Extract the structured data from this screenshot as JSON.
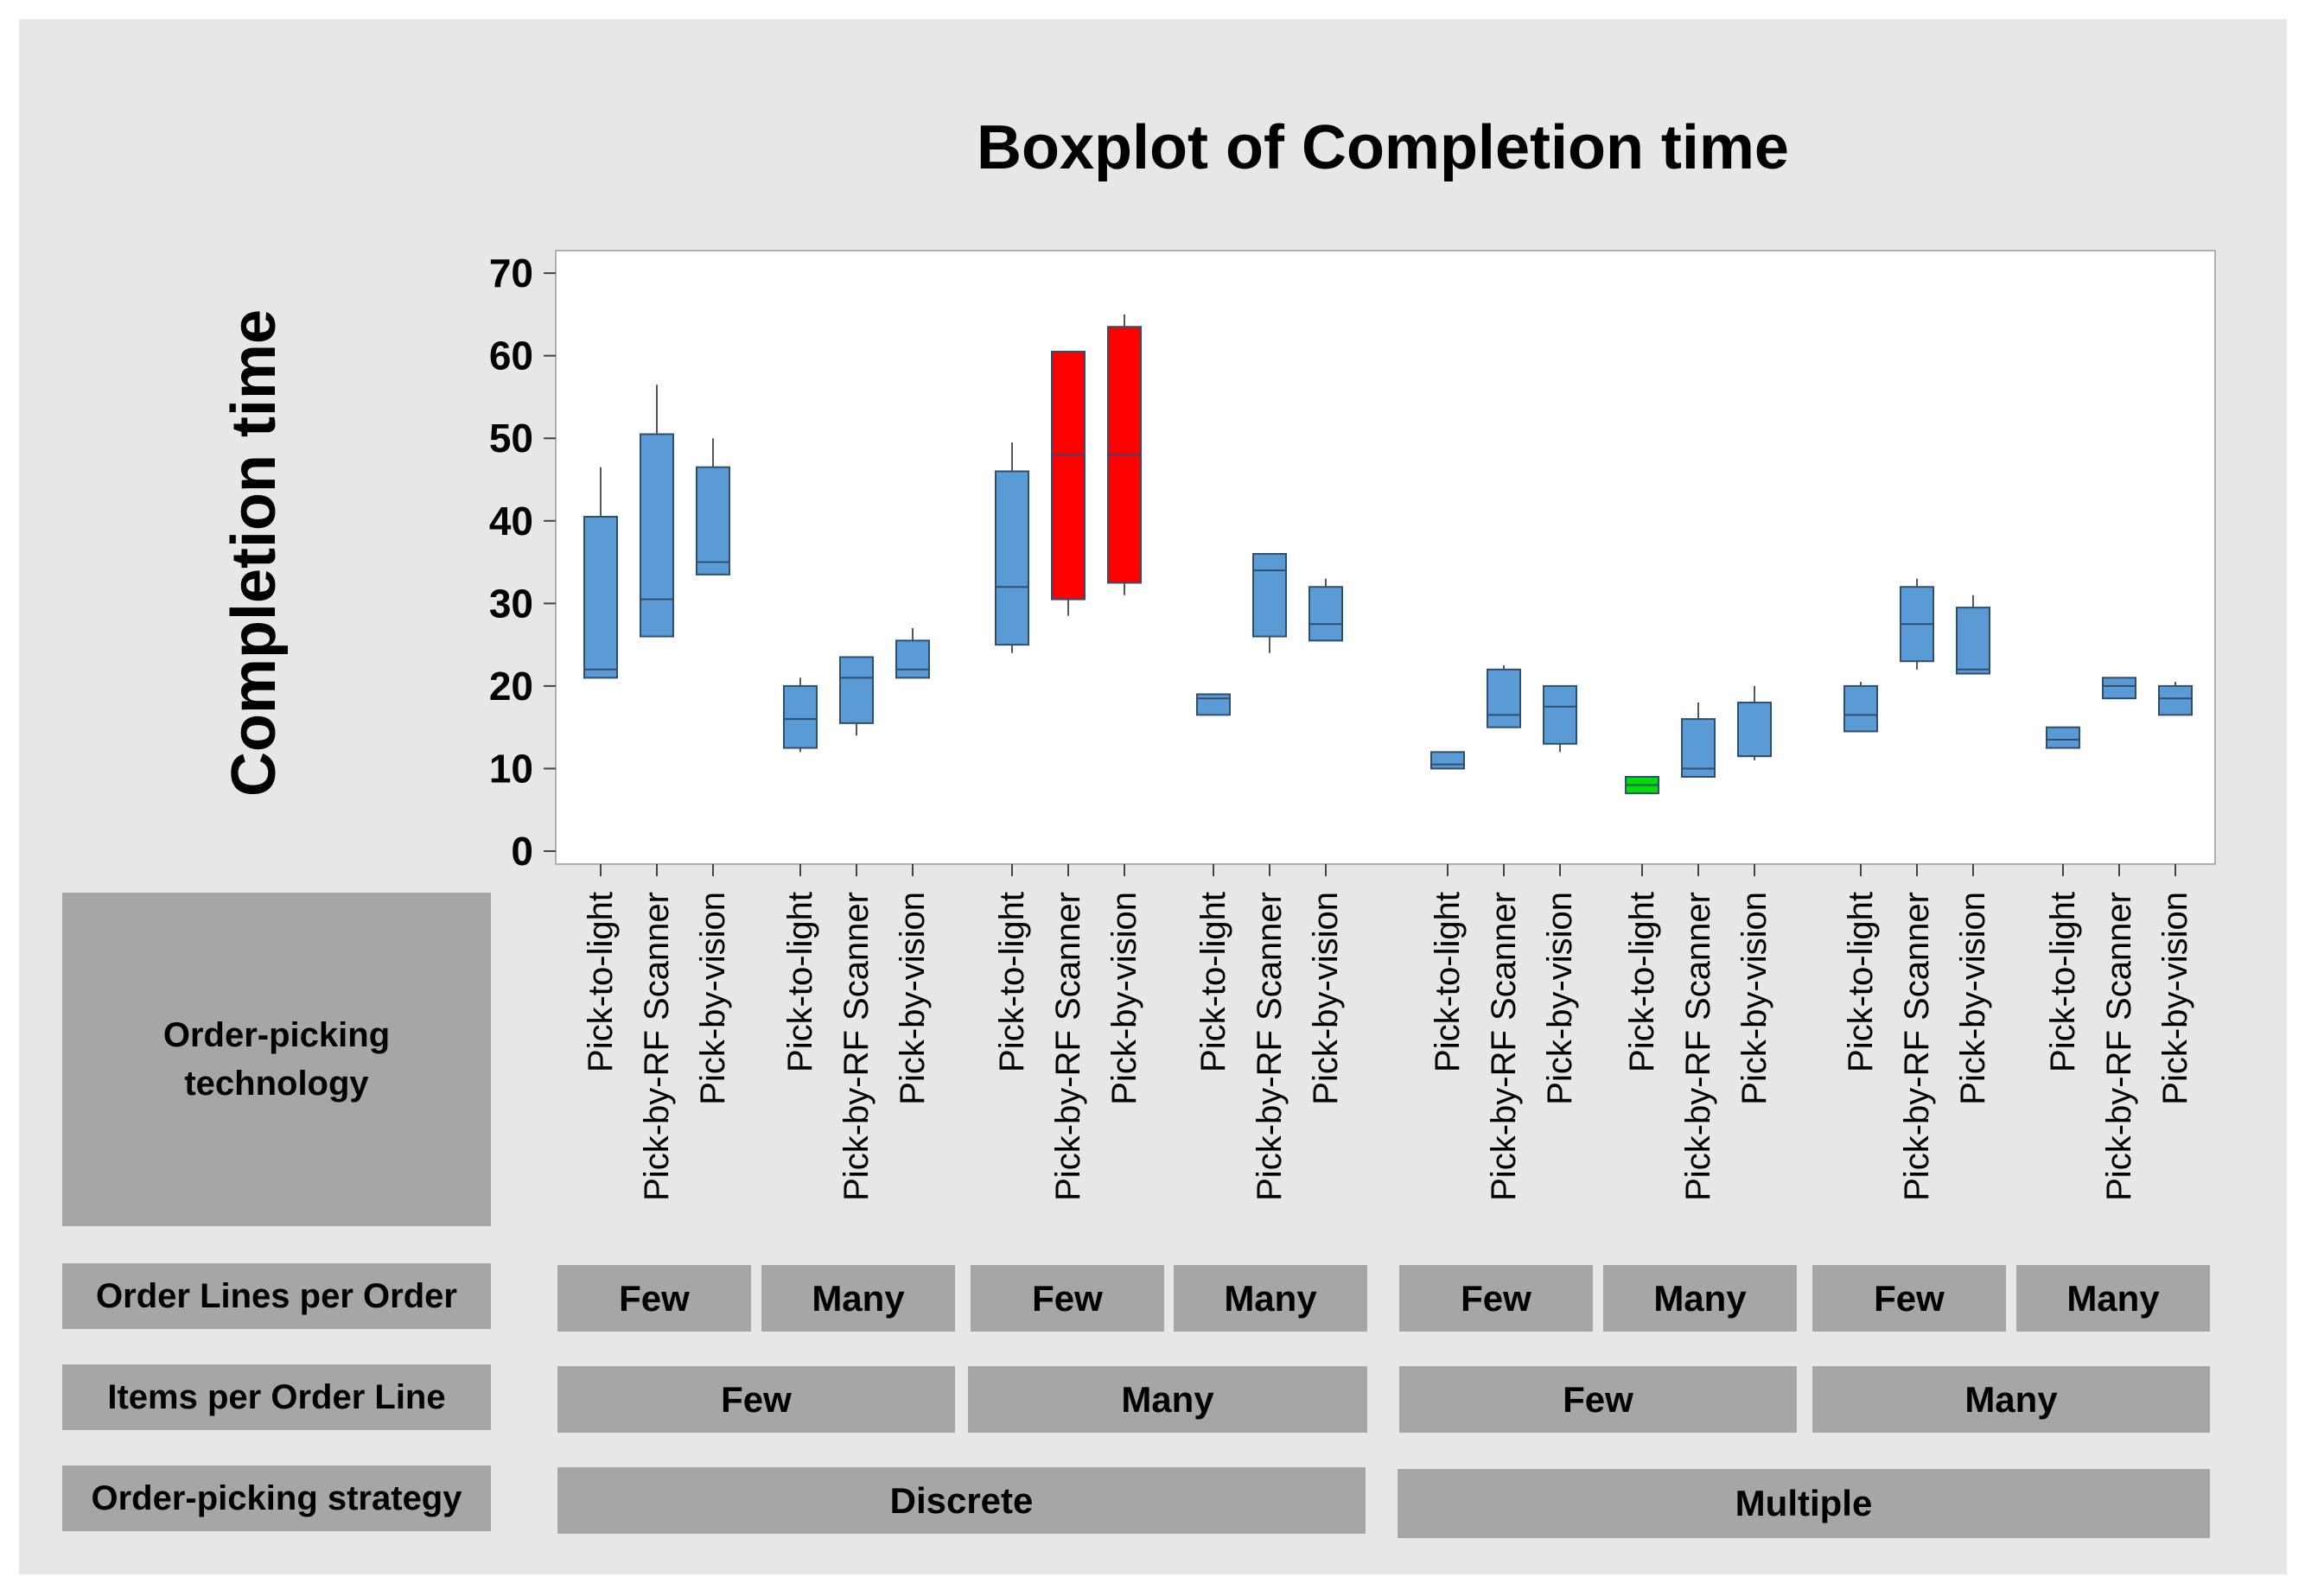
{
  "chart_data": {
    "type": "boxplot",
    "title": "Boxplot of Completion time",
    "ylabel": "Completion time",
    "ylim": [
      0,
      72
    ],
    "yticks": [
      0,
      10,
      20,
      30,
      40,
      50,
      60,
      70
    ],
    "colors": {
      "default": "#5b9bd5",
      "worst": "#ff0000",
      "best": "#00dd00",
      "stroke": "#2f4f6f"
    },
    "boxes": [
      {
        "technology": "Pick-to-light",
        "min": 21,
        "q1": 21,
        "median": 22,
        "q3": 40.5,
        "max": 46.5,
        "highlight": "default"
      },
      {
        "technology": "Pick-by-RF Scanner",
        "min": 26,
        "q1": 26,
        "median": 30.5,
        "q3": 50.5,
        "max": 56.5,
        "highlight": "default"
      },
      {
        "technology": "Pick-by-vision",
        "min": 33.5,
        "q1": 33.5,
        "median": 35,
        "q3": 46.5,
        "max": 50,
        "highlight": "default"
      },
      {
        "technology": "Pick-to-light",
        "min": 12,
        "q1": 12.5,
        "median": 16,
        "q3": 20,
        "max": 21,
        "highlight": "default"
      },
      {
        "technology": "Pick-by-RF Scanner",
        "min": 14,
        "q1": 15.5,
        "median": 21,
        "q3": 23.5,
        "max": 23.5,
        "highlight": "default"
      },
      {
        "technology": "Pick-by-vision",
        "min": 21,
        "q1": 21,
        "median": 22,
        "q3": 25.5,
        "max": 27,
        "highlight": "default"
      },
      {
        "technology": "Pick-to-light",
        "min": 24,
        "q1": 25,
        "median": 32,
        "q3": 46,
        "max": 49.5,
        "highlight": "default"
      },
      {
        "technology": "Pick-by-RF Scanner",
        "min": 28.5,
        "q1": 30.5,
        "median": 48,
        "q3": 60.5,
        "max": 60.5,
        "highlight": "worst"
      },
      {
        "technology": "Pick-by-vision",
        "min": 31,
        "q1": 32.5,
        "median": 48,
        "q3": 63.5,
        "max": 65,
        "highlight": "worst"
      },
      {
        "technology": "Pick-to-light",
        "min": 16.5,
        "q1": 16.5,
        "median": 18.5,
        "q3": 19,
        "max": 19,
        "highlight": "default"
      },
      {
        "technology": "Pick-by-RF Scanner",
        "min": 24,
        "q1": 26,
        "median": 34,
        "q3": 36,
        "max": 36,
        "highlight": "default"
      },
      {
        "technology": "Pick-by-vision",
        "min": 25.5,
        "q1": 25.5,
        "median": 27.5,
        "q3": 32,
        "max": 33,
        "highlight": "default"
      },
      {
        "technology": "Pick-to-light",
        "min": 10,
        "q1": 10,
        "median": 10.5,
        "q3": 12,
        "max": 12,
        "highlight": "default"
      },
      {
        "technology": "Pick-by-RF Scanner",
        "min": 15,
        "q1": 15,
        "median": 16.5,
        "q3": 22,
        "max": 22.5,
        "highlight": "default"
      },
      {
        "technology": "Pick-by-vision",
        "min": 12,
        "q1": 13,
        "median": 17.5,
        "q3": 20,
        "max": 20,
        "highlight": "default"
      },
      {
        "technology": "Pick-to-light",
        "min": 7,
        "q1": 7,
        "median": 8,
        "q3": 9,
        "max": 9,
        "highlight": "best"
      },
      {
        "technology": "Pick-by-RF Scanner",
        "min": 9,
        "q1": 9,
        "median": 10,
        "q3": 16,
        "max": 18,
        "highlight": "default"
      },
      {
        "technology": "Pick-by-vision",
        "min": 11,
        "q1": 11.5,
        "median": 11.5,
        "q3": 18,
        "max": 20,
        "highlight": "default"
      },
      {
        "technology": "Pick-to-light",
        "min": 14.5,
        "q1": 14.5,
        "median": 16.5,
        "q3": 20,
        "max": 20.5,
        "highlight": "default"
      },
      {
        "technology": "Pick-by-RF Scanner",
        "min": 22,
        "q1": 23,
        "median": 27.5,
        "q3": 32,
        "max": 33,
        "highlight": "default"
      },
      {
        "technology": "Pick-by-vision",
        "min": 21.5,
        "q1": 21.5,
        "median": 22,
        "q3": 29.5,
        "max": 31,
        "highlight": "default"
      },
      {
        "technology": "Pick-to-light",
        "min": 12.5,
        "q1": 12.5,
        "median": 13.5,
        "q3": 15,
        "max": 15,
        "highlight": "default"
      },
      {
        "technology": "Pick-by-RF Scanner",
        "min": 18.5,
        "q1": 18.5,
        "median": 20,
        "q3": 21,
        "max": 21,
        "highlight": "default"
      },
      {
        "technology": "Pick-by-vision",
        "min": 16.5,
        "q1": 16.5,
        "median": 18.5,
        "q3": 20,
        "max": 20.5,
        "highlight": "default"
      }
    ],
    "groups": {
      "order_lines_per_order": [
        "Few",
        "Many",
        "Few",
        "Many",
        "Few",
        "Many",
        "Few",
        "Many"
      ],
      "items_per_order_line": [
        "Few",
        "Many",
        "Few",
        "Many"
      ],
      "order_picking_strategy": [
        "Discrete",
        "Multiple"
      ]
    }
  },
  "row_labels": {
    "technology": "Order-picking technology",
    "order_lines": "Order Lines per Order",
    "items": "Items per Order Line",
    "strategy": "Order-picking strategy"
  }
}
